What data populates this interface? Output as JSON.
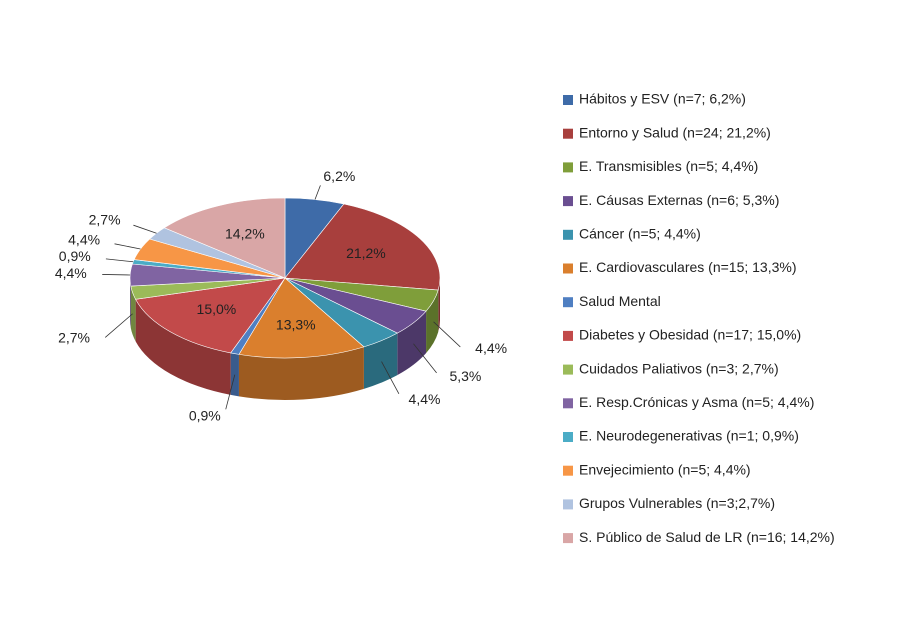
{
  "chart_data": {
    "type": "pie",
    "categories": [
      "Hábitos y ESV (n=7; 6,2%)",
      "Entorno y Salud (n=24; 21,2%)",
      "E. Transmisibles (n=5; 4,4%)",
      "E. Cáusas Externas (n=6; 5,3%)",
      "Cáncer (n=5; 4,4%)",
      "E. Cardiovasculares (n=15; 13,3%)",
      "Salud Mental",
      "Diabetes y Obesidad (n=17; 15,0%)",
      "Cuidados Paliativos (n=3; 2,7%)",
      "E. Resp.Crónicas y Asma (n=5; 4,4%)",
      "E. Neurodegenerativas (n=1; 0,9%)",
      "Envejecimiento (n=5; 4,4%)",
      "Grupos Vulnerables (n=3;2,7%)",
      "S. Público de Salud de LR (n=16; 14,2%)"
    ],
    "values": [
      6.2,
      21.2,
      4.4,
      5.3,
      4.4,
      13.3,
      0.9,
      15.0,
      2.7,
      4.4,
      0.9,
      4.4,
      2.7,
      14.2
    ],
    "value_labels": [
      "6,2%",
      "21,2%",
      "4,4%",
      "5,3%",
      "4,4%",
      "13,3%",
      "0,9%",
      "15,0%",
      "2,7%",
      "4,4%",
      "0,9%",
      "4,4%",
      "2,7%",
      "14,2%"
    ],
    "colors": [
      "#3E6BA8",
      "#A83F3D",
      "#7F9E3A",
      "#6A4E91",
      "#3B93AE",
      "#DA7F2D",
      "#4F7FC2",
      "#C24A4A",
      "#9BBB59",
      "#8064A2",
      "#4BACC6",
      "#F79646",
      "#B0C3E0",
      "#D9A6A6"
    ],
    "legend": "right"
  }
}
